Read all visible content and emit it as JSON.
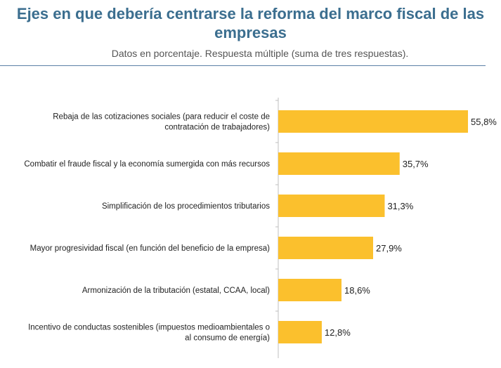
{
  "title_line1": "Ejes en que debería centrarse la reforma del marco fiscal de las",
  "title_line2": "empresas",
  "subtitle": "Datos en porcentaje. Respuesta múltiple (suma de tres respuestas).",
  "colors": {
    "bar": "#fbc02d",
    "title": "#3b6e8f",
    "axis": "#bfbfbf"
  },
  "chart_data": {
    "type": "bar",
    "orientation": "horizontal",
    "categories": [
      [
        "Rebaja de las cotizaciones sociales (para reducir el coste de",
        "contratación de trabajadores)"
      ],
      [
        "Combatir el fraude fiscal y la economía sumergida con más recursos"
      ],
      [
        "Simplificación de los procedimientos tributarios"
      ],
      [
        "Mayor progresividad fiscal (en función del beneficio de la empresa)"
      ],
      [
        "Armonización de la tributación (estatal, CCAA, local)"
      ],
      [
        "Incentivo de conductas sostenibles (impuestos medioambientales o",
        "al consumo de energía)"
      ]
    ],
    "values": [
      55.8,
      35.7,
      31.3,
      27.9,
      18.6,
      12.8
    ],
    "value_labels": [
      "55,8%",
      "35,7%",
      "31,3%",
      "27,9%",
      "18,6%",
      "12,8%"
    ],
    "xlim": [
      0,
      55.8
    ],
    "grid": false,
    "title": "Ejes en que debería centrarse la reforma del marco fiscal de las empresas",
    "subtitle": "Datos en porcentaje. Respuesta múltiple (suma de tres respuestas)."
  }
}
